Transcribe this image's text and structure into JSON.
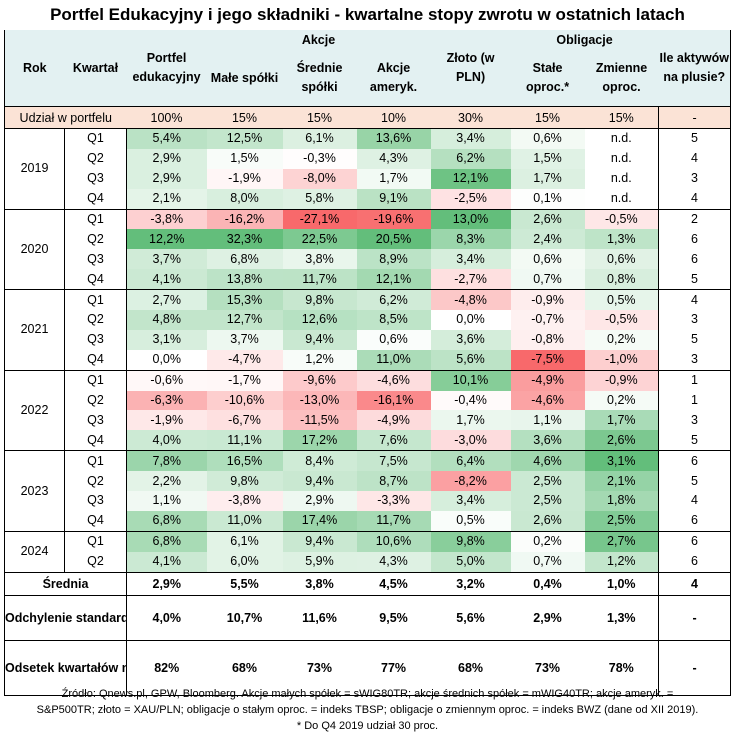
{
  "title": "Portfel Edukacyjny i jego składniki - kwartalne stopy zwrotu w ostatnich latach",
  "headers": {
    "rok": "Rok",
    "kwartal": "Kwartał",
    "portfel": "Portfel edukacyjny",
    "akcje": "Akcje",
    "male": "Małe spółki",
    "srednie": "Średnie spółki",
    "ameryk": "Akcje ameryk.",
    "zloto": "Złoto (w PLN)",
    "obligacje": "Obligacje",
    "stale": "Stałe oproc.*",
    "zmienne": "Zmienne oproc.",
    "ile": "Ile aktywów na plusie?"
  },
  "share": {
    "label": "Udział w portfelu",
    "values": [
      "100%",
      "15%",
      "15%",
      "10%",
      "30%",
      "15%",
      "15%",
      "-"
    ]
  },
  "chart_data": {
    "type": "table",
    "title": "Portfel Edukacyjny i jego składniki - kwartalne stopy zwrotu w ostatnich latach",
    "columns": [
      "Portfel edukacyjny",
      "Małe spółki",
      "Średnie spółki",
      "Akcje ameryk.",
      "Złoto (w PLN)",
      "Stałe oproc.*",
      "Zmienne oproc.",
      "Ile aktywów na plusie?"
    ],
    "rows": [
      {
        "year": "2019",
        "q": "Q1",
        "v": [
          "5,4%",
          "12,5%",
          "6,1%",
          "13,6%",
          "3,4%",
          "0,6%",
          "n.d.",
          "5"
        ]
      },
      {
        "year": "",
        "q": "Q2",
        "v": [
          "2,9%",
          "1,5%",
          "-0,3%",
          "4,3%",
          "6,2%",
          "1,5%",
          "n.d.",
          "4"
        ]
      },
      {
        "year": "",
        "q": "Q3",
        "v": [
          "2,9%",
          "-1,9%",
          "-8,0%",
          "1,7%",
          "12,1%",
          "1,7%",
          "n.d.",
          "3"
        ]
      },
      {
        "year": "",
        "q": "Q4",
        "v": [
          "2,1%",
          "8,0%",
          "5,8%",
          "9,1%",
          "-2,5%",
          "0,1%",
          "n.d.",
          "4"
        ]
      },
      {
        "year": "2020",
        "q": "Q1",
        "v": [
          "-3,8%",
          "-16,2%",
          "-27,1%",
          "-19,6%",
          "13,0%",
          "2,6%",
          "-0,5%",
          "2"
        ]
      },
      {
        "year": "",
        "q": "Q2",
        "v": [
          "12,2%",
          "32,3%",
          "22,5%",
          "20,5%",
          "8,3%",
          "2,4%",
          "1,3%",
          "6"
        ]
      },
      {
        "year": "",
        "q": "Q3",
        "v": [
          "3,7%",
          "6,8%",
          "3,8%",
          "8,9%",
          "3,4%",
          "0,6%",
          "0,6%",
          "6"
        ]
      },
      {
        "year": "",
        "q": "Q4",
        "v": [
          "4,1%",
          "13,8%",
          "11,7%",
          "12,1%",
          "-2,7%",
          "0,7%",
          "0,8%",
          "5"
        ]
      },
      {
        "year": "2021",
        "q": "Q1",
        "v": [
          "2,7%",
          "15,3%",
          "9,8%",
          "6,2%",
          "-4,8%",
          "-0,9%",
          "0,5%",
          "4"
        ]
      },
      {
        "year": "",
        "q": "Q2",
        "v": [
          "4,8%",
          "12,7%",
          "12,6%",
          "8,5%",
          "0,0%",
          "-0,7%",
          "-0,5%",
          "3"
        ]
      },
      {
        "year": "",
        "q": "Q3",
        "v": [
          "3,1%",
          "3,7%",
          "9,4%",
          "0,6%",
          "3,6%",
          "-0,8%",
          "0,2%",
          "5"
        ]
      },
      {
        "year": "",
        "q": "Q4",
        "v": [
          "0,0%",
          "-4,7%",
          "1,2%",
          "11,0%",
          "5,6%",
          "-7,5%",
          "-1,0%",
          "3"
        ]
      },
      {
        "year": "2022",
        "q": "Q1",
        "v": [
          "-0,6%",
          "-1,7%",
          "-9,6%",
          "-4,6%",
          "10,1%",
          "-4,9%",
          "-0,9%",
          "1"
        ]
      },
      {
        "year": "",
        "q": "Q2",
        "v": [
          "-6,3%",
          "-10,6%",
          "-13,0%",
          "-16,1%",
          "-0,4%",
          "-4,6%",
          "0,2%",
          "1"
        ]
      },
      {
        "year": "",
        "q": "Q3",
        "v": [
          "-1,9%",
          "-6,7%",
          "-11,5%",
          "-4,9%",
          "1,7%",
          "1,1%",
          "1,7%",
          "3"
        ]
      },
      {
        "year": "",
        "q": "Q4",
        "v": [
          "4,0%",
          "11,1%",
          "17,2%",
          "7,6%",
          "-3,0%",
          "3,6%",
          "2,6%",
          "5"
        ]
      },
      {
        "year": "2023",
        "q": "Q1",
        "v": [
          "7,8%",
          "16,5%",
          "8,4%",
          "7,5%",
          "6,4%",
          "4,6%",
          "3,1%",
          "6"
        ]
      },
      {
        "year": "",
        "q": "Q2",
        "v": [
          "2,2%",
          "9,8%",
          "9,4%",
          "8,7%",
          "-8,2%",
          "2,5%",
          "2,1%",
          "5"
        ]
      },
      {
        "year": "",
        "q": "Q3",
        "v": [
          "1,1%",
          "-3,8%",
          "2,9%",
          "-3,3%",
          "3,4%",
          "2,5%",
          "1,8%",
          "4"
        ]
      },
      {
        "year": "",
        "q": "Q4",
        "v": [
          "6,8%",
          "11,0%",
          "17,4%",
          "11,7%",
          "0,5%",
          "2,6%",
          "2,5%",
          "6"
        ]
      },
      {
        "year": "2024",
        "q": "Q1",
        "v": [
          "6,8%",
          "6,1%",
          "9,4%",
          "10,6%",
          "9,8%",
          "0,2%",
          "2,7%",
          "6"
        ]
      },
      {
        "year": "",
        "q": "Q2",
        "v": [
          "4,1%",
          "6,0%",
          "5,9%",
          "4,3%",
          "5,0%",
          "0,7%",
          "1,2%",
          "6"
        ]
      }
    ],
    "summary": [
      {
        "label": "Średnia",
        "v": [
          "2,9%",
          "5,5%",
          "3,8%",
          "4,5%",
          "3,2%",
          "0,4%",
          "1,0%",
          "4"
        ]
      },
      {
        "label": "Odchylenie standardowe",
        "v": [
          "4,0%",
          "10,7%",
          "11,6%",
          "9,5%",
          "5,6%",
          "2,9%",
          "1,3%",
          "-"
        ]
      },
      {
        "label": "Odsetek kwartałów na plusie",
        "v": [
          "82%",
          "68%",
          "73%",
          "77%",
          "68%",
          "73%",
          "78%",
          "-"
        ]
      }
    ],
    "colors": {
      "positive": "#63be7b",
      "negative": "#f8696b",
      "neutral": "#ffffff"
    }
  },
  "footnote": {
    "line1": "Źródło: Qnews.pl, GPW, Bloomberg. Akcje małych spółek = sWIG80TR; akcje średnich spółek = mWIG40TR; akcje ameryk. =",
    "line2": "S&P500TR; złoto = XAU/PLN; obligacje o stałym oproc. = indeks TBSP; obligacje o zmiennym oproc. = indeks BWZ (dane od XII 2019).",
    "line3": "* Do Q4 2019 udział 30 proc."
  }
}
